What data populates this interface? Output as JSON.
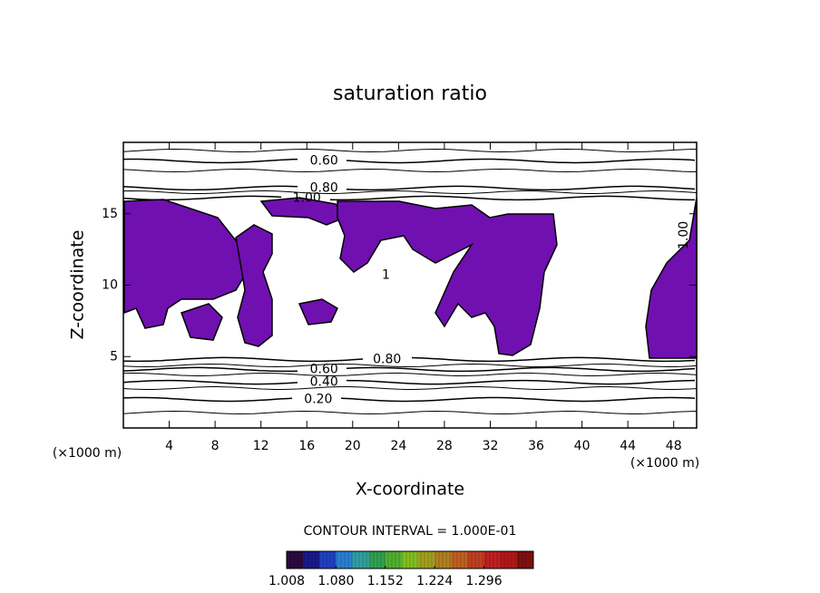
{
  "chart_data": {
    "type": "contour",
    "title": "saturation ratio",
    "x_label": "X-coordinate",
    "y_label": "Z-coordinate",
    "x_unit": "(×1000 m)",
    "y_unit": "(×1000 m)",
    "xlim": [
      0,
      50
    ],
    "ylim": [
      0,
      20
    ],
    "xticks": [
      4,
      8,
      12,
      16,
      20,
      24,
      28,
      32,
      36,
      40,
      44,
      48
    ],
    "yticks": [
      5,
      10,
      15
    ],
    "contour_labels": [
      {
        "value": 0.6,
        "label": "0.60",
        "x": 17.5,
        "y": 18.7
      },
      {
        "value": 0.8,
        "label": "0.80",
        "x": 17.5,
        "y": 16.8
      },
      {
        "value": 1,
        "label": "1.00",
        "x": 16.0,
        "y": 16.1
      },
      {
        "value": 0.8,
        "label": "0.80",
        "x": 23.0,
        "y": 4.8
      },
      {
        "value": 0.6,
        "label": "0.60",
        "x": 17.5,
        "y": 4.1
      },
      {
        "value": 0.4,
        "label": "0.40",
        "x": 17.5,
        "y": 3.2
      },
      {
        "value": 0.2,
        "label": "0.20",
        "x": 17.0,
        "y": 2.0
      }
    ],
    "region_labels": [
      {
        "value": 1,
        "label": "1.00",
        "x": 48.9,
        "y": 13.5
      },
      {
        "value": 1,
        "label": "1",
        "x": 22.9,
        "y": 10.7
      }
    ],
    "contour_interval": "CONTOUR INTERVAL = 1.000E-01",
    "clim": [
      1.008,
      1.368
    ],
    "cticks": [
      1.008,
      {
        "value": 1.08,
        "label": "1.080"
      },
      1.152,
      1.224,
      1.296
    ],
    "colors": [
      "#2a0a40",
      "#1a1a8a",
      "#2040c0",
      "#2a80d0",
      "#30a0a0",
      "#30a050",
      "#50b030",
      "#80c020",
      "#a0a020",
      "#b08020",
      "#c06020",
      "#c04020",
      "#c02020",
      "#b01818",
      "#801010"
    ],
    "fill_color": "#7010b0"
  }
}
